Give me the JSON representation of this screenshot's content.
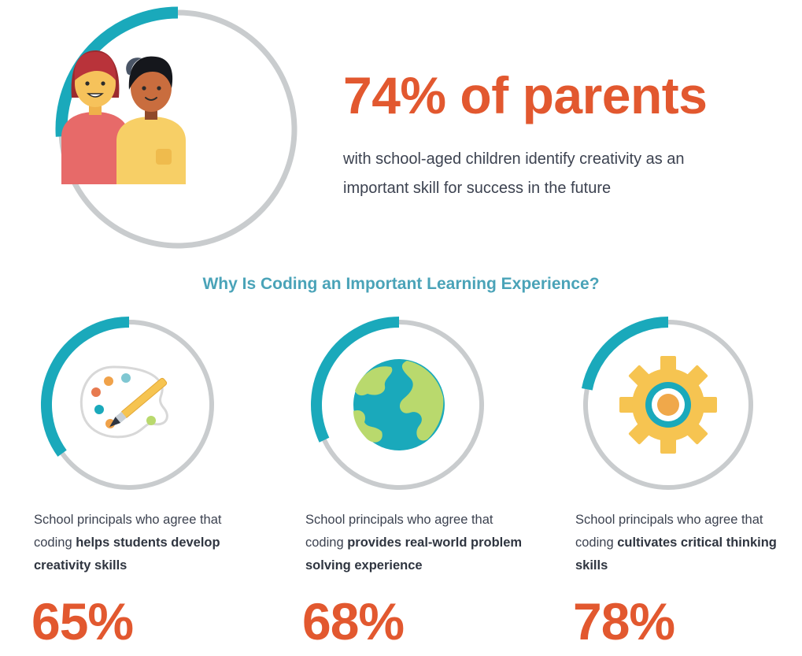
{
  "hero": {
    "headline": "74% of parents",
    "description": "with school-aged children identify creativity as an important skill for success in the future",
    "percent": 74,
    "icon": "parents-icon"
  },
  "section_title": "Why Is Coding an Important Learning Experience?",
  "stats": [
    {
      "intro": "School principals who agree that coding ",
      "emphasis": "helps students develop creativity skills",
      "value": "65%",
      "percent": 65,
      "icon": "paint-palette-icon"
    },
    {
      "intro": "School principals who agree that coding ",
      "emphasis": "provides real-world problem solving experience",
      "value": "68%",
      "percent": 68,
      "icon": "globe-icon"
    },
    {
      "intro": "School principals who agree that coding ",
      "emphasis": "cultivates critical thinking skills",
      "value": "78%",
      "percent": 78,
      "icon": "gear-icon"
    }
  ],
  "colors": {
    "accent": "#e2582f",
    "ring_fill": "#1aa9bb",
    "ring_track": "#c9ccce",
    "title": "#4aa3b8"
  }
}
